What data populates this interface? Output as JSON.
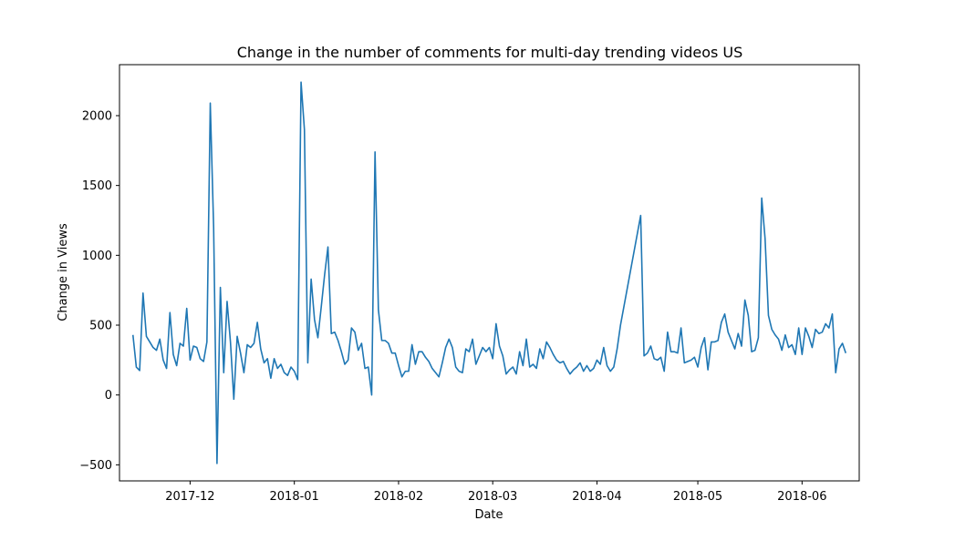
{
  "chart_data": {
    "type": "line",
    "title": "Change in the number of comments for multi-day trending videos US",
    "xlabel": "Date",
    "ylabel": "Change in Views",
    "ylim": [
      -615,
      2365
    ],
    "xlim": [
      "2017-11-10",
      "2018-06-18"
    ],
    "grid": false,
    "line_color": "#1f77b4",
    "x_ticks": [
      {
        "value": "2017-12-01",
        "label": "2017-12"
      },
      {
        "value": "2018-01-01",
        "label": "2018-01"
      },
      {
        "value": "2018-02-01",
        "label": "2018-02"
      },
      {
        "value": "2018-03-01",
        "label": "2018-03"
      },
      {
        "value": "2018-04-01",
        "label": "2018-04"
      },
      {
        "value": "2018-05-01",
        "label": "2018-05"
      },
      {
        "value": "2018-06-01",
        "label": "2018-06"
      }
    ],
    "y_ticks": [
      {
        "value": -500,
        "label": "−500"
      },
      {
        "value": 0,
        "label": "0"
      },
      {
        "value": 500,
        "label": "500"
      },
      {
        "value": 1000,
        "label": "1000"
      },
      {
        "value": 1500,
        "label": "1500"
      },
      {
        "value": 2000,
        "label": "2000"
      }
    ],
    "x": [
      "2017-11-14",
      "2017-11-15",
      "2017-11-16",
      "2017-11-17",
      "2017-11-18",
      "2017-11-19",
      "2017-11-20",
      "2017-11-21",
      "2017-11-22",
      "2017-11-23",
      "2017-11-24",
      "2017-11-25",
      "2017-11-26",
      "2017-11-27",
      "2017-11-28",
      "2017-11-29",
      "2017-11-30",
      "2017-12-01",
      "2017-12-02",
      "2017-12-03",
      "2017-12-04",
      "2017-12-05",
      "2017-12-06",
      "2017-12-07",
      "2017-12-08",
      "2017-12-09",
      "2017-12-10",
      "2017-12-11",
      "2017-12-12",
      "2017-12-13",
      "2017-12-14",
      "2017-12-15",
      "2017-12-16",
      "2017-12-17",
      "2017-12-18",
      "2017-12-19",
      "2017-12-20",
      "2017-12-21",
      "2017-12-22",
      "2017-12-23",
      "2017-12-24",
      "2017-12-25",
      "2017-12-26",
      "2017-12-27",
      "2017-12-28",
      "2017-12-29",
      "2017-12-30",
      "2017-12-31",
      "2018-01-01",
      "2018-01-02",
      "2018-01-03",
      "2018-01-04",
      "2018-01-05",
      "2018-01-06",
      "2018-01-07",
      "2018-01-08",
      "2018-01-09",
      "2018-01-10",
      "2018-01-11",
      "2018-01-12",
      "2018-01-13",
      "2018-01-14",
      "2018-01-15",
      "2018-01-16",
      "2018-01-17",
      "2018-01-18",
      "2018-01-19",
      "2018-01-20",
      "2018-01-21",
      "2018-01-22",
      "2018-01-23",
      "2018-01-24",
      "2018-01-25",
      "2018-01-26",
      "2018-01-27",
      "2018-01-28",
      "2018-01-29",
      "2018-01-30",
      "2018-01-31",
      "2018-02-01",
      "2018-02-02",
      "2018-02-03",
      "2018-02-04",
      "2018-02-05",
      "2018-02-06",
      "2018-02-07",
      "2018-02-08",
      "2018-02-09",
      "2018-02-10",
      "2018-02-11",
      "2018-02-12",
      "2018-02-13",
      "2018-02-14",
      "2018-02-15",
      "2018-02-16",
      "2018-02-17",
      "2018-02-18",
      "2018-02-19",
      "2018-02-20",
      "2018-02-21",
      "2018-02-22",
      "2018-02-23",
      "2018-02-24",
      "2018-02-25",
      "2018-02-26",
      "2018-02-27",
      "2018-02-28",
      "2018-03-01",
      "2018-03-02",
      "2018-03-03",
      "2018-03-04",
      "2018-03-05",
      "2018-03-06",
      "2018-03-07",
      "2018-03-08",
      "2018-03-09",
      "2018-03-10",
      "2018-03-11",
      "2018-03-12",
      "2018-03-13",
      "2018-03-14",
      "2018-03-15",
      "2018-03-16",
      "2018-03-17",
      "2018-03-18",
      "2018-03-19",
      "2018-03-20",
      "2018-03-21",
      "2018-03-22",
      "2018-03-23",
      "2018-03-24",
      "2018-03-25",
      "2018-03-26",
      "2018-03-27",
      "2018-03-28",
      "2018-03-29",
      "2018-03-30",
      "2018-03-31",
      "2018-04-01",
      "2018-04-02",
      "2018-04-03",
      "2018-04-04",
      "2018-04-05",
      "2018-04-06",
      "2018-04-07",
      "2018-04-08",
      "2018-04-14",
      "2018-04-15",
      "2018-04-16",
      "2018-04-17",
      "2018-04-18",
      "2018-04-19",
      "2018-04-20",
      "2018-04-21",
      "2018-04-22",
      "2018-04-23",
      "2018-04-24",
      "2018-04-25",
      "2018-04-26",
      "2018-04-27",
      "2018-04-28",
      "2018-04-29",
      "2018-04-30",
      "2018-05-01",
      "2018-05-02",
      "2018-05-03",
      "2018-05-04",
      "2018-05-05",
      "2018-05-06",
      "2018-05-07",
      "2018-05-08",
      "2018-05-09",
      "2018-05-10",
      "2018-05-11",
      "2018-05-12",
      "2018-05-13",
      "2018-05-14",
      "2018-05-15",
      "2018-05-16",
      "2018-05-17",
      "2018-05-18",
      "2018-05-19",
      "2018-05-20",
      "2018-05-21",
      "2018-05-22",
      "2018-05-23",
      "2018-05-24",
      "2018-05-25",
      "2018-05-26",
      "2018-05-27",
      "2018-05-28",
      "2018-05-29",
      "2018-05-30",
      "2018-05-31",
      "2018-06-01",
      "2018-06-02",
      "2018-06-03",
      "2018-06-04",
      "2018-06-05",
      "2018-06-06",
      "2018-06-07",
      "2018-06-08",
      "2018-06-09",
      "2018-06-10",
      "2018-06-11",
      "2018-06-12",
      "2018-06-13",
      "2018-06-14"
    ],
    "series": [
      {
        "values": [
          430,
          200,
          175,
          730,
          420,
          380,
          340,
          320,
          400,
          250,
          190,
          590,
          290,
          210,
          370,
          350,
          620,
          250,
          350,
          340,
          260,
          240,
          380,
          2090,
          1200,
          -490,
          770,
          160,
          670,
          380,
          -30,
          420,
          300,
          160,
          360,
          340,
          370,
          520,
          330,
          230,
          260,
          120,
          260,
          190,
          220,
          160,
          140,
          200,
          170,
          110,
          2240,
          1900,
          230,
          830,
          540,
          410,
          630,
          860,
          1060,
          440,
          450,
          390,
          310,
          220,
          250,
          480,
          450,
          320,
          370,
          190,
          200,
          0,
          1740,
          610,
          390,
          390,
          370,
          300,
          300,
          210,
          130,
          170,
          170,
          360,
          220,
          310,
          310,
          270,
          240,
          190,
          160,
          130,
          230,
          340,
          400,
          340,
          200,
          170,
          160,
          330,
          310,
          400,
          220,
          280,
          340,
          310,
          340,
          260,
          510,
          350,
          280,
          150,
          180,
          200,
          150,
          310,
          210,
          400,
          200,
          220,
          190,
          330,
          260,
          380,
          340,
          290,
          250,
          230,
          240,
          190,
          150,
          180,
          200,
          230,
          170,
          210,
          170,
          190,
          250,
          220,
          340,
          210,
          170,
          200,
          330,
          500,
          1285,
          280,
          300,
          350,
          260,
          250,
          270,
          170,
          450,
          310,
          310,
          300,
          480,
          230,
          240,
          250,
          270,
          200,
          340,
          410,
          180,
          380,
          380,
          390,
          520,
          580,
          450,
          390,
          330,
          440,
          350,
          680,
          570,
          310,
          320,
          410,
          1410,
          1120,
          570,
          470,
          430,
          400,
          320,
          430,
          340,
          360,
          290,
          480,
          290,
          480,
          420,
          340,
          470,
          440,
          450,
          510,
          480,
          580,
          160,
          330,
          370,
          300
        ]
      }
    ]
  }
}
